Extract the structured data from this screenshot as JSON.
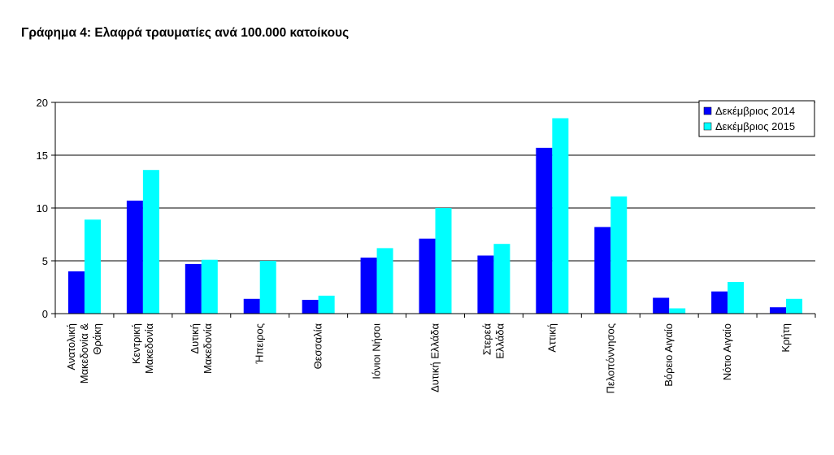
{
  "title": "Γράφημα 4: Ελαφρά τραυματίες ανά 100.000 κατοίκους",
  "chart_data": {
    "type": "bar",
    "title": "Γράφημα 4: Ελαφρά τραυματίες ανά 100.000 κατοίκους",
    "xlabel": "",
    "ylabel": "",
    "ylim": [
      0,
      20
    ],
    "yticks": [
      0,
      5,
      10,
      15,
      20
    ],
    "grid": true,
    "legend_position": "top-right",
    "categories": [
      [
        "Ανατολική",
        "Μακεδονία &",
        "Θράκη"
      ],
      [
        "Κεντρική",
        "Μακεδονία"
      ],
      [
        "Δυτική",
        "Μακεδονία"
      ],
      [
        "Ήπειρος"
      ],
      [
        "Θεσσαλία"
      ],
      [
        "Ιόνιοι Νήσοι"
      ],
      [
        "Δυτική Ελλάδα"
      ],
      [
        "Στερεά",
        "Ελλάδα"
      ],
      [
        "Αττική"
      ],
      [
        "Πελοπόννησος"
      ],
      [
        "Βόρειο Αιγαίο"
      ],
      [
        "Νότιο Αιγαίο"
      ],
      [
        "Κρήτη"
      ]
    ],
    "series": [
      {
        "name": "Δεκέμβριος 2014",
        "color": "#0000ff",
        "values": [
          4.0,
          10.7,
          4.7,
          1.4,
          1.3,
          5.3,
          7.1,
          5.5,
          15.7,
          8.2,
          1.5,
          2.1,
          0.6
        ]
      },
      {
        "name": "Δεκέμβριος 2015",
        "color": "#00ffff",
        "values": [
          8.9,
          13.6,
          5.1,
          5.0,
          1.7,
          6.2,
          10.0,
          6.6,
          18.5,
          11.1,
          0.5,
          3.0,
          1.4
        ]
      }
    ]
  }
}
